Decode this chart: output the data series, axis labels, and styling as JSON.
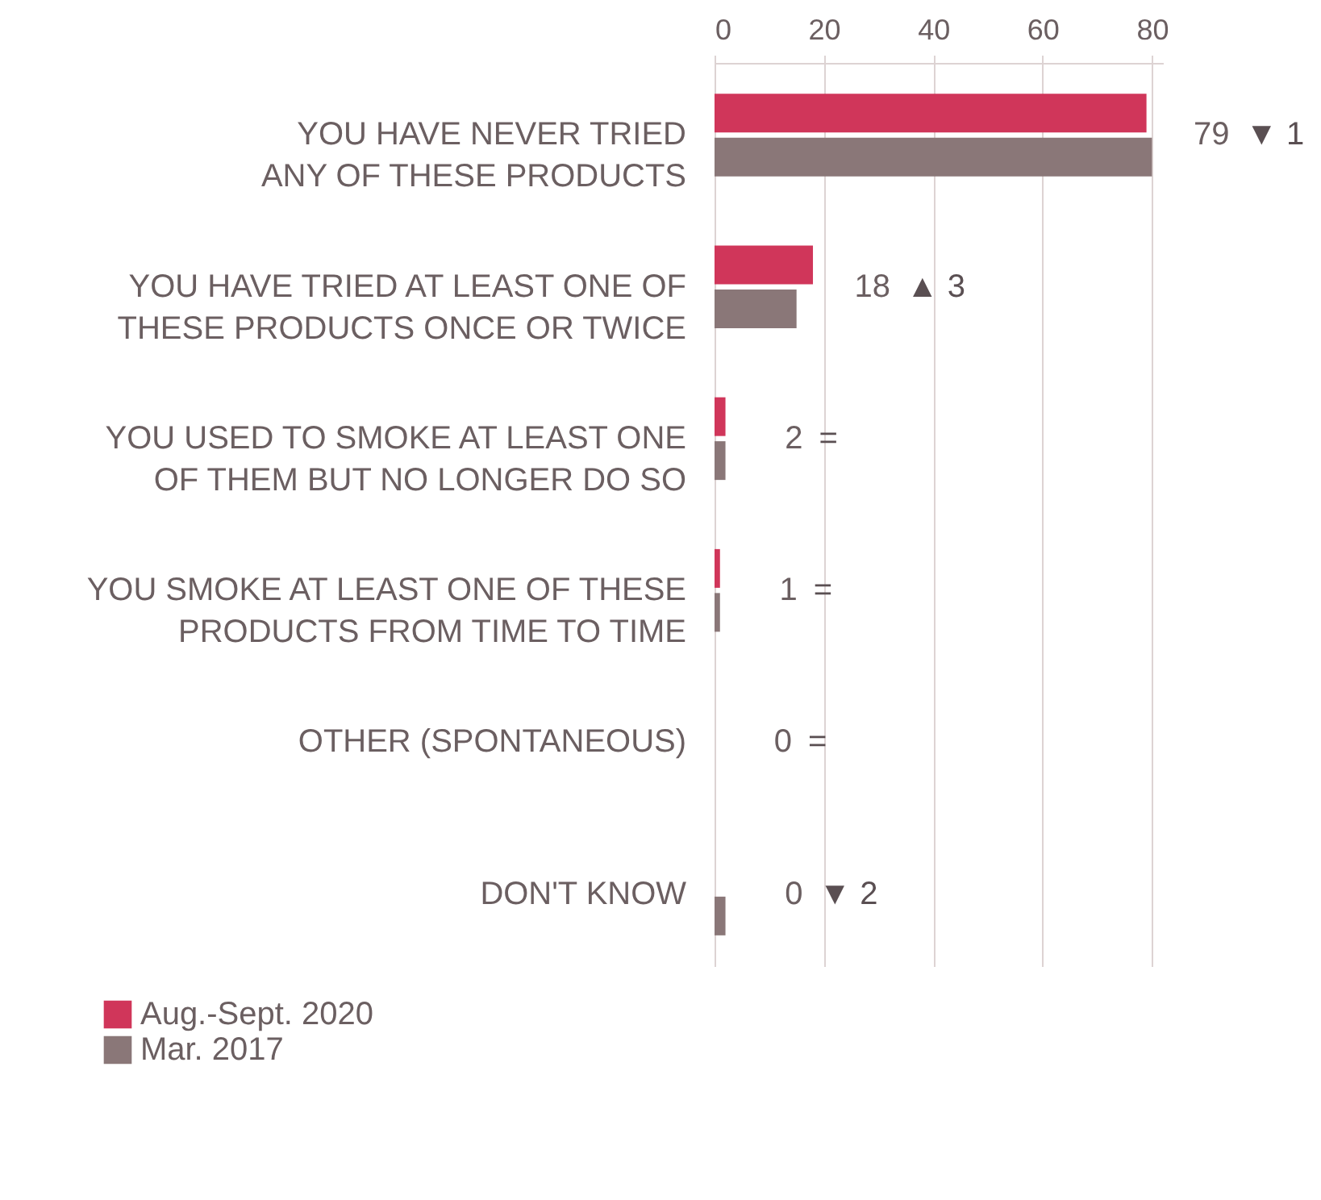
{
  "chart_data": {
    "type": "bar",
    "orientation": "horizontal",
    "categories": [
      "YOU HAVE NEVER TRIED ANY OF THESE PRODUCTS",
      "YOU HAVE TRIED AT LEAST ONE OF THESE PRODUCTS ONCE OR TWICE",
      "YOU USED TO SMOKE AT LEAST ONE OF THEM BUT NO LONGER DO SO",
      "YOU SMOKE AT LEAST ONE OF THESE PRODUCTS FROM TIME TO TIME",
      "OTHER (SPONTANEOUS)",
      "DON'T KNOW"
    ],
    "series": [
      {
        "name": "Aug.-Sept. 2020",
        "color": "#d0365a",
        "values": [
          79,
          18,
          2,
          1,
          0,
          0
        ],
        "value_labels": [
          "79",
          "18",
          "2",
          "1",
          "0",
          "0"
        ]
      },
      {
        "name": "Mar. 2017",
        "color": "#8a7778",
        "values": [
          80,
          15,
          2,
          1,
          0,
          2
        ]
      }
    ],
    "annotations": [
      "▼ 1",
      "▲ 3",
      "=",
      "=",
      "=",
      "▼ 2"
    ],
    "xlim": [
      0,
      82
    ],
    "xticks": [
      0,
      20,
      40,
      60,
      80
    ],
    "grid": "x",
    "legend": "bottom left"
  }
}
